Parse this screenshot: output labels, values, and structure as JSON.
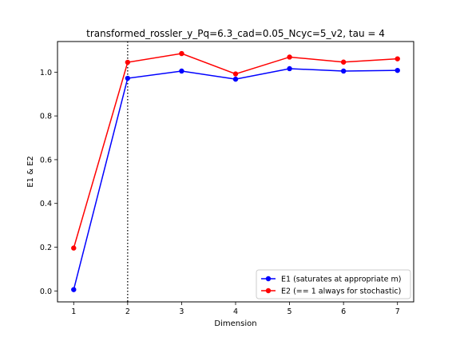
{
  "chart_data": {
    "type": "line",
    "title": "transformed_rossler_y_Pq=6.3_cad=0.05_Ncyc=5_v2, tau = 4",
    "xlabel": "Dimension",
    "ylabel": "E1 & E2",
    "x": [
      1,
      2,
      3,
      4,
      5,
      6,
      7
    ],
    "xticks": [
      "1",
      "2",
      "3",
      "4",
      "5",
      "6",
      "7"
    ],
    "yticks": [
      "0.0",
      "0.2",
      "0.4",
      "0.6",
      "0.8",
      "1.0"
    ],
    "xlim": [
      0.7,
      7.3
    ],
    "ylim": [
      -0.05,
      1.14
    ],
    "grid": false,
    "legend_position": "lower-right",
    "vline": {
      "x": 2,
      "style": "dotted",
      "color": "#000000"
    },
    "series": [
      {
        "name": "E1 (saturates at appropriate m)",
        "color": "#0000ff",
        "values": [
          0.006,
          0.972,
          1.005,
          0.968,
          1.016,
          1.005,
          1.008
        ]
      },
      {
        "name": "E2 (== 1 always for stochastic)",
        "color": "#ff0000",
        "values": [
          0.196,
          1.045,
          1.085,
          0.992,
          1.069,
          1.046,
          1.061
        ]
      }
    ]
  }
}
